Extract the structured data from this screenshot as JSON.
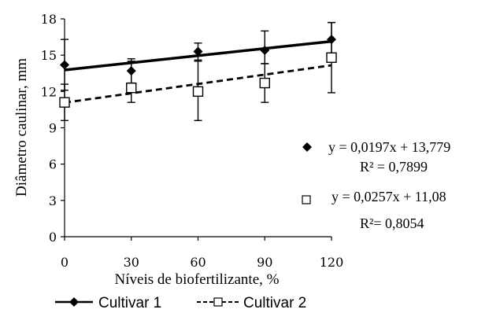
{
  "chart_data": {
    "type": "scatter",
    "title": "",
    "xlabel": "Níveis de biofertilizante, %",
    "ylabel": "Diâmetro caulinar, mm",
    "xlim": [
      0,
      120
    ],
    "ylim": [
      0,
      18
    ],
    "xticks": [
      "0",
      "30",
      "60",
      "90",
      "120"
    ],
    "yticks": [
      "0",
      "3",
      "6",
      "9",
      "12",
      "15",
      "18"
    ],
    "grid": false,
    "legend_position": "bottom",
    "series": [
      {
        "name": "Cultivar 1",
        "marker": "filled-diamond",
        "line_style": "solid",
        "color": "#000000",
        "x": [
          0,
          30,
          60,
          90,
          120
        ],
        "y": [
          14.2,
          13.7,
          15.3,
          15.4,
          16.3
        ],
        "error_low": [
          12.1,
          12.7,
          14.5,
          14.3,
          14.9
        ],
        "error_high": [
          16.3,
          14.7,
          16.0,
          17.0,
          17.7
        ],
        "fit": {
          "slope": 0.0197,
          "intercept": 13.779
        }
      },
      {
        "name": "Cultivar 2",
        "marker": "open-square",
        "line_style": "dashed",
        "color": "#000000",
        "x": [
          0,
          30,
          60,
          90,
          120
        ],
        "y": [
          11.1,
          12.3,
          12.0,
          12.7,
          14.8
        ],
        "error_low": [
          9.6,
          11.1,
          9.6,
          11.1,
          11.9
        ],
        "error_high": [
          12.6,
          14.5,
          14.6,
          14.3,
          17.7
        ],
        "fit": {
          "slope": 0.0257,
          "intercept": 11.08
        }
      }
    ],
    "annotations": [
      {
        "id": "eq1",
        "marker": "filled-diamond",
        "equation": "y = 0,0197x + 13,779",
        "r2": "R² = 0,7899"
      },
      {
        "id": "eq2",
        "marker": "open-square",
        "equation": "y = 0,0257x + 11,08",
        "r2": "R²= 0,8054"
      }
    ]
  }
}
